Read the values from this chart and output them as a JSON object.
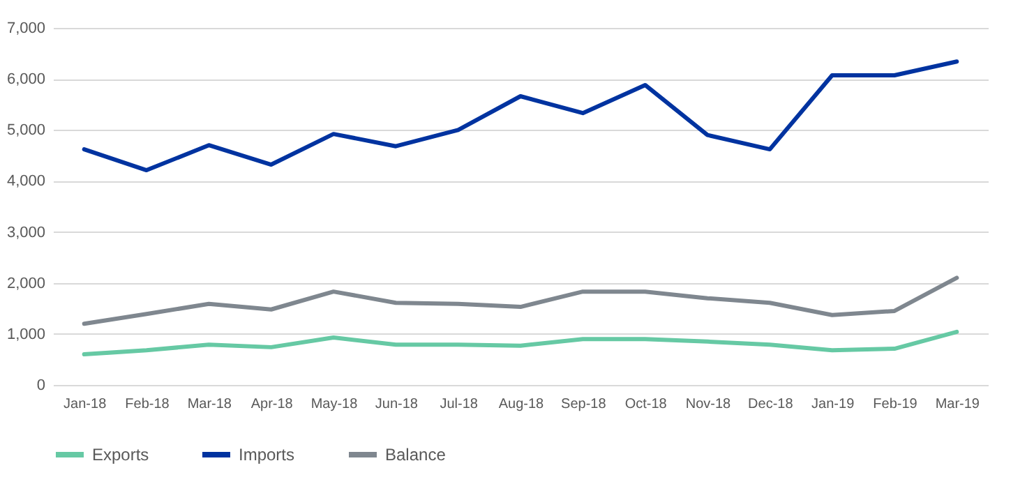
{
  "chart_data": {
    "type": "line",
    "categories": [
      "Jan-18",
      "Feb-18",
      "Mar-18",
      "Apr-18",
      "May-18",
      "Jun-18",
      "Jul-18",
      "Aug-18",
      "Sep-18",
      "Oct-18",
      "Nov-18",
      "Dec-18",
      "Jan-19",
      "Feb-19",
      "Mar-19"
    ],
    "series": [
      {
        "name": "Exports",
        "color": "#66c9a4",
        "values": [
          600,
          680,
          790,
          740,
          930,
          790,
          790,
          770,
          900,
          900,
          850,
          790,
          680,
          710,
          1040
        ]
      },
      {
        "name": "Imports",
        "color": "#0033a0",
        "values": [
          4620,
          4210,
          4700,
          4320,
          4920,
          4680,
          5000,
          5660,
          5330,
          5880,
          4900,
          4620,
          6070,
          6070,
          6340
        ]
      },
      {
        "name": "Balance",
        "color": "#7f878f",
        "values": [
          1200,
          1390,
          1590,
          1480,
          1830,
          1610,
          1590,
          1530,
          1830,
          1830,
          1700,
          1610,
          1370,
          1450,
          2100
        ]
      }
    ],
    "ylim": [
      0,
      7000
    ],
    "yticks": [
      0,
      {
        "value": 1000,
        "label": "1,000"
      },
      {
        "value": 2000,
        "label": "2,000"
      },
      {
        "value": 3000,
        "label": "3,000"
      },
      {
        "value": 4000,
        "label": "4,000"
      },
      {
        "value": 5000,
        "label": "5,000"
      },
      {
        "value": 6000,
        "label": "6,000"
      },
      {
        "value": 7000,
        "label": "7,000"
      }
    ],
    "grid": "y",
    "legend": "bottom",
    "line_style": "solid",
    "marker": "none"
  }
}
